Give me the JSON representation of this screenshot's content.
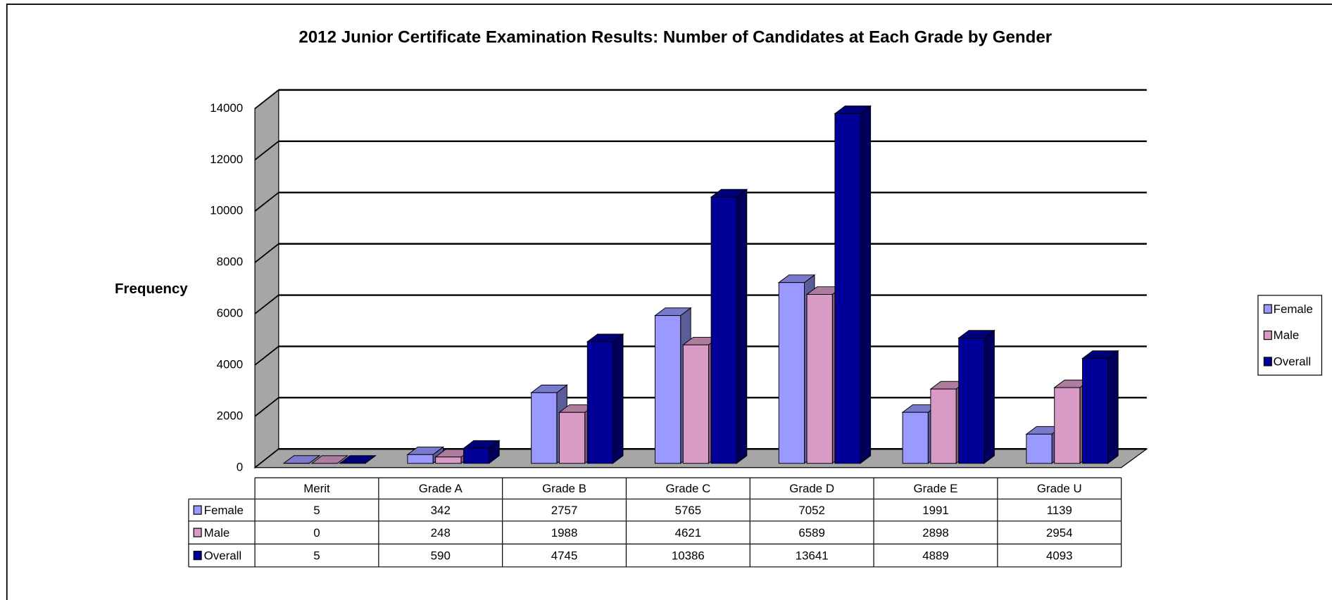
{
  "chart_data": {
    "type": "bar3d",
    "title": "2012 Junior Certificate Examination Results: Number of Candidates at Each Grade by Gender",
    "y_label": "Frequency",
    "categories": [
      "Merit",
      "Grade A",
      "Grade B",
      "Grade C",
      "Grade D",
      "Grade E",
      "Grade U"
    ],
    "series": [
      {
        "name": "Female",
        "color": "#9999ff",
        "values": [
          5,
          342,
          2757,
          5765,
          7052,
          1991,
          1139
        ]
      },
      {
        "name": "Male",
        "color": "#d99bc6",
        "values": [
          0,
          248,
          1988,
          4621,
          6589,
          2898,
          2954
        ]
      },
      {
        "name": "Overall",
        "color": "#000099",
        "values": [
          5,
          590,
          4745,
          10386,
          13641,
          4889,
          4093
        ]
      }
    ],
    "ylim": [
      0,
      14000
    ],
    "yticks": [
      0,
      2000,
      4000,
      6000,
      8000,
      10000,
      12000,
      14000
    ],
    "grid": true,
    "legend": "right",
    "data_table": true
  }
}
